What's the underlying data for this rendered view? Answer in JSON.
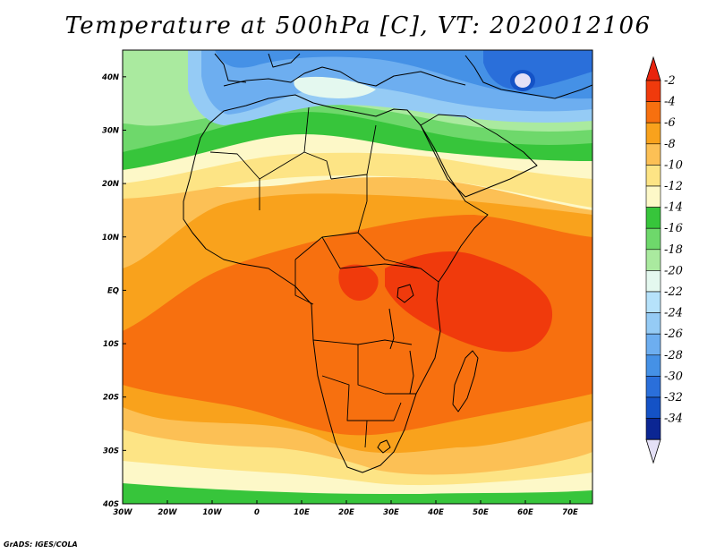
{
  "title": "Temperature at 500hPa [C], VT: 2020012106",
  "credit": "GrADS: IGES/COLA",
  "map": {
    "extent": {
      "lon": [
        -30,
        75
      ],
      "lat": [
        -40,
        45
      ]
    },
    "lat_ticks": [
      {
        "value": 40,
        "label": "40N"
      },
      {
        "value": 30,
        "label": "30N"
      },
      {
        "value": 20,
        "label": "20N"
      },
      {
        "value": 10,
        "label": "10N"
      },
      {
        "value": 0,
        "label": "EQ"
      },
      {
        "value": -10,
        "label": "10S"
      },
      {
        "value": -20,
        "label": "20S"
      },
      {
        "value": -30,
        "label": "30S"
      },
      {
        "value": -40,
        "label": "40S"
      }
    ],
    "lon_ticks": [
      {
        "value": -30,
        "label": "30W"
      },
      {
        "value": -20,
        "label": "20W"
      },
      {
        "value": -10,
        "label": "10W"
      },
      {
        "value": 0,
        "label": "0"
      },
      {
        "value": 10,
        "label": "10E"
      },
      {
        "value": 20,
        "label": "20E"
      },
      {
        "value": 30,
        "label": "30E"
      },
      {
        "value": 40,
        "label": "40E"
      },
      {
        "value": 50,
        "label": "50E"
      },
      {
        "value": 60,
        "label": "60E"
      },
      {
        "value": 70,
        "label": "70E"
      }
    ]
  },
  "colorbar": {
    "levels": [
      {
        "label": "-2",
        "color": "#f03a0c"
      },
      {
        "label": "-4",
        "color": "#f7700f"
      },
      {
        "label": "-6",
        "color": "#f9a21c"
      },
      {
        "label": "-8",
        "color": "#fcc055"
      },
      {
        "label": "-10",
        "color": "#fde485"
      },
      {
        "label": "-12",
        "color": "#fdf8c8"
      },
      {
        "label": "-14",
        "color": "#37c53b"
      },
      {
        "label": "-16",
        "color": "#6ed86b"
      },
      {
        "label": "-18",
        "color": "#aaea9f"
      },
      {
        "label": "-20",
        "color": "#e4f8ef"
      },
      {
        "label": "-22",
        "color": "#b6e2fb"
      },
      {
        "label": "-24",
        "color": "#95cbf5"
      },
      {
        "label": "-26",
        "color": "#6daef0"
      },
      {
        "label": "-28",
        "color": "#4591e6"
      },
      {
        "label": "-30",
        "color": "#2a6fda"
      },
      {
        "label": "-32",
        "color": "#1452c6"
      },
      {
        "label": "-34",
        "color": "#0b2693"
      }
    ],
    "top_color": "#e8230d",
    "bottom_color": "#e4e0f6"
  }
}
